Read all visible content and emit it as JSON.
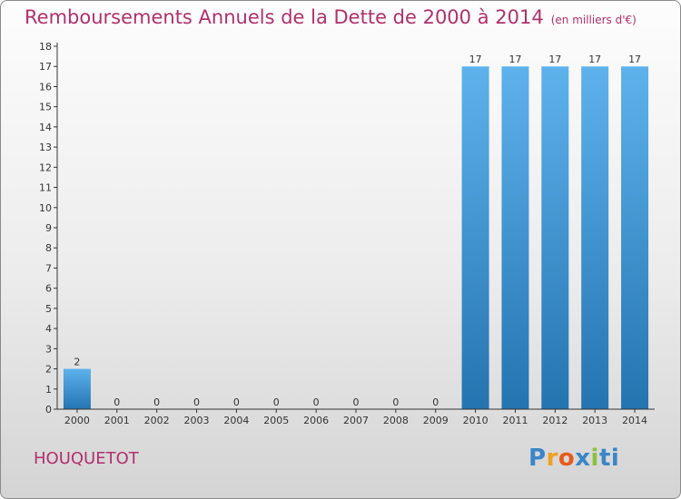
{
  "header": {
    "title": "Remboursements Annuels de la Dette de 2000 à 2014",
    "unit": "(en milliers d'€)"
  },
  "footer": {
    "commune": "HOUQUETOT",
    "logo_letters": [
      "P",
      "r",
      "o",
      "x",
      "i",
      "t",
      "i"
    ],
    "logo_colors": [
      "#3a86c8",
      "#f0a020",
      "#e85a1a",
      "#3a86c8",
      "#8cc040",
      "#3a86c8",
      "#3a86c8"
    ]
  },
  "colors": {
    "bar_light": "#5eb2ec",
    "bar_dark": "#2474b0",
    "text_accent": "#b0306e"
  },
  "chart_data": {
    "type": "bar",
    "title": "Remboursements Annuels de la Dette de 2000 à 2014",
    "ylabel": "(en milliers d'€)",
    "categories": [
      "2000",
      "2001",
      "2002",
      "2003",
      "2004",
      "2005",
      "2006",
      "2007",
      "2008",
      "2009",
      "2010",
      "2011",
      "2012",
      "2013",
      "2014"
    ],
    "values": [
      2,
      0,
      0,
      0,
      0,
      0,
      0,
      0,
      0,
      0,
      17,
      17,
      17,
      17,
      17
    ],
    "data_labels": [
      "2",
      "0",
      "0",
      "0",
      "0",
      "0",
      "0",
      "0",
      "0",
      "0",
      "17",
      "17",
      "17",
      "17",
      "17"
    ],
    "ylim": [
      0,
      18
    ],
    "yticks": [
      0,
      1,
      2,
      3,
      4,
      5,
      6,
      7,
      8,
      9,
      10,
      11,
      12,
      13,
      14,
      15,
      16,
      17,
      18
    ],
    "grid": false,
    "legend": "none"
  }
}
